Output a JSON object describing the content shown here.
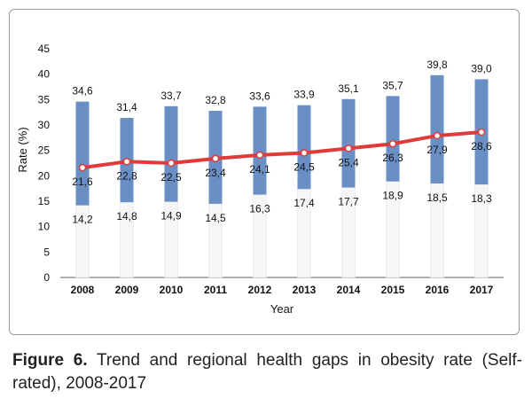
{
  "chart_data": {
    "type": "bar",
    "categories": [
      "2008",
      "2009",
      "2010",
      "2011",
      "2012",
      "2013",
      "2014",
      "2015",
      "2016",
      "2017"
    ],
    "series": [
      {
        "kind": "range-bar",
        "values_min": [
          14.2,
          14.8,
          14.9,
          14.5,
          16.3,
          17.4,
          17.7,
          18.9,
          18.5,
          18.3
        ],
        "values_max": [
          34.6,
          31.4,
          33.7,
          32.8,
          33.6,
          33.9,
          35.1,
          35.7,
          39.8,
          39.0
        ]
      },
      {
        "kind": "line",
        "values": [
          21.6,
          22.8,
          22.5,
          23.4,
          24.1,
          24.5,
          25.4,
          26.3,
          27.9,
          28.6
        ]
      }
    ],
    "max_labels": [
      "34,6",
      "31,4",
      "33,7",
      "32,8",
      "33,6",
      "33,9",
      "35,1",
      "35,7",
      "39,8",
      "39,0"
    ],
    "min_labels": [
      "14,2",
      "14,8",
      "14,9",
      "14,5",
      "16,3",
      "17,4",
      "17,7",
      "18,9",
      "18,5",
      "18,3"
    ],
    "line_labels": [
      "21,6",
      "22,8",
      "22,5",
      "23,4",
      "24,1",
      "24,5",
      "25,4",
      "26,3",
      "27,9",
      "28,6"
    ],
    "xlabel": "Year",
    "ylabel": "Rate (%)",
    "ylim": [
      0,
      45
    ],
    "yticks": [
      0,
      5,
      10,
      15,
      20,
      25,
      30,
      35,
      40,
      45
    ],
    "colors": {
      "bar": "#6a8fc4",
      "line": "#e03b3b",
      "marker_fill": "#ffffff"
    },
    "grid": false,
    "legend": "none"
  },
  "caption": {
    "label": "Figure 6.",
    "text": " Trend and regional health gaps in obesity rate (Self-rated), 2008-2017"
  }
}
